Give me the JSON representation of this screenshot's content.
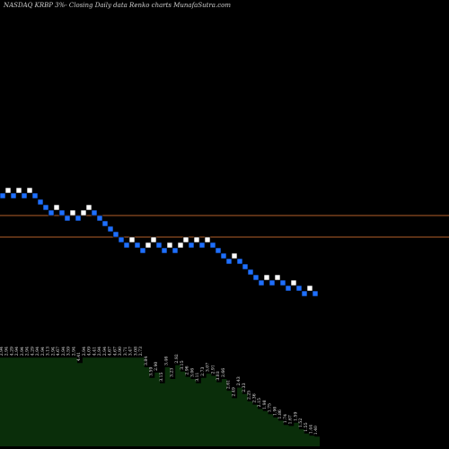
{
  "chart_data": {
    "type": "renko",
    "title": "NASDAQ KRBP 3%- Closing Daily data Renko charts MunafaSutra.com",
    "colors": {
      "background": "#000000",
      "up_brick": "#ffffff",
      "down_brick": "#1e6fff",
      "reference_line": "#b4602a",
      "volume_fill": "#0a2e0a"
    },
    "bricks": [
      {
        "dir": "down",
        "level": 218
      },
      {
        "dir": "up",
        "level": 212
      },
      {
        "dir": "down",
        "level": 218
      },
      {
        "dir": "up",
        "level": 212
      },
      {
        "dir": "down",
        "level": 218
      },
      {
        "dir": "up",
        "level": 212
      },
      {
        "dir": "down",
        "level": 218
      },
      {
        "dir": "down",
        "level": 225
      },
      {
        "dir": "down",
        "level": 231
      },
      {
        "dir": "down",
        "level": 237
      },
      {
        "dir": "up",
        "level": 231
      },
      {
        "dir": "down",
        "level": 237
      },
      {
        "dir": "down",
        "level": 243
      },
      {
        "dir": "up",
        "level": 237
      },
      {
        "dir": "down",
        "level": 243
      },
      {
        "dir": "up",
        "level": 237
      },
      {
        "dir": "up",
        "level": 231
      },
      {
        "dir": "down",
        "level": 237
      },
      {
        "dir": "down",
        "level": 243
      },
      {
        "dir": "down",
        "level": 249
      },
      {
        "dir": "down",
        "level": 255
      },
      {
        "dir": "down",
        "level": 261
      },
      {
        "dir": "down",
        "level": 267
      },
      {
        "dir": "down",
        "level": 273
      },
      {
        "dir": "up",
        "level": 267
      },
      {
        "dir": "down",
        "level": 273
      },
      {
        "dir": "down",
        "level": 279
      },
      {
        "dir": "up",
        "level": 273
      },
      {
        "dir": "up",
        "level": 267
      },
      {
        "dir": "down",
        "level": 273
      },
      {
        "dir": "down",
        "level": 279
      },
      {
        "dir": "up",
        "level": 273
      },
      {
        "dir": "down",
        "level": 279
      },
      {
        "dir": "up",
        "level": 273
      },
      {
        "dir": "up",
        "level": 267
      },
      {
        "dir": "down",
        "level": 273
      },
      {
        "dir": "up",
        "level": 267
      },
      {
        "dir": "down",
        "level": 273
      },
      {
        "dir": "up",
        "level": 267
      },
      {
        "dir": "down",
        "level": 273
      },
      {
        "dir": "down",
        "level": 279
      },
      {
        "dir": "down",
        "level": 285
      },
      {
        "dir": "down",
        "level": 291
      },
      {
        "dir": "up",
        "level": 285
      },
      {
        "dir": "down",
        "level": 291
      },
      {
        "dir": "down",
        "level": 297
      },
      {
        "dir": "down",
        "level": 303
      },
      {
        "dir": "down",
        "level": 309
      },
      {
        "dir": "down",
        "level": 315
      },
      {
        "dir": "up",
        "level": 309
      },
      {
        "dir": "down",
        "level": 315
      },
      {
        "dir": "up",
        "level": 309
      },
      {
        "dir": "down",
        "level": 315
      },
      {
        "dir": "down",
        "level": 321
      },
      {
        "dir": "up",
        "level": 315
      },
      {
        "dir": "down",
        "level": 321
      },
      {
        "dir": "down",
        "level": 327
      },
      {
        "dir": "up",
        "level": 321
      },
      {
        "dir": "down",
        "level": 327
      }
    ],
    "reference_lines": [
      240,
      264
    ],
    "volume_labels": [
      "2.94",
      "2.94",
      "4.29",
      "2.94",
      "2.94",
      "2.94",
      "4.29",
      "2.94",
      "2.94",
      "3.13",
      "2.94",
      "4.67",
      "2.94",
      "3.59",
      "2.94",
      "4.41",
      "2.94",
      "4.09",
      "4.41",
      "2.94",
      "2.94",
      "4.67",
      "4.67",
      "3.90",
      "3.71",
      "3.47",
      "3.08",
      "2.73",
      "3.84",
      "3.59",
      "2.90",
      "3.15",
      "3.46",
      "3.23",
      "2.92",
      "3.15",
      "2.96",
      "3.06",
      "3.11",
      "2.73",
      "3.07",
      "2.91",
      "3.03",
      "2.66",
      "2.61",
      "2.49",
      "2.43",
      "2.33",
      "2.25",
      "2.36",
      "2.15",
      "1.98",
      "1.75",
      "1.90",
      "1.86",
      "1.74",
      "1.67",
      "1.59",
      "1.52",
      "1.55",
      "1.44",
      "1.40"
    ],
    "volume_bars": [
      0.83,
      0.83,
      0.83,
      0.83,
      0.83,
      0.83,
      0.83,
      0.83,
      0.83,
      0.83,
      0.83,
      0.83,
      0.83,
      0.83,
      0.83,
      0.78,
      0.83,
      0.83,
      0.83,
      0.83,
      0.83,
      0.83,
      0.83,
      0.83,
      0.83,
      0.83,
      0.83,
      0.83,
      0.74,
      0.64,
      0.69,
      0.59,
      0.74,
      0.63,
      0.76,
      0.7,
      0.65,
      0.63,
      0.59,
      0.64,
      0.68,
      0.66,
      0.6,
      0.63,
      0.52,
      0.45,
      0.55,
      0.49,
      0.42,
      0.39,
      0.35,
      0.33,
      0.3,
      0.27,
      0.24,
      0.2,
      0.19,
      0.22,
      0.16,
      0.12,
      0.1,
      0.09
    ]
  }
}
